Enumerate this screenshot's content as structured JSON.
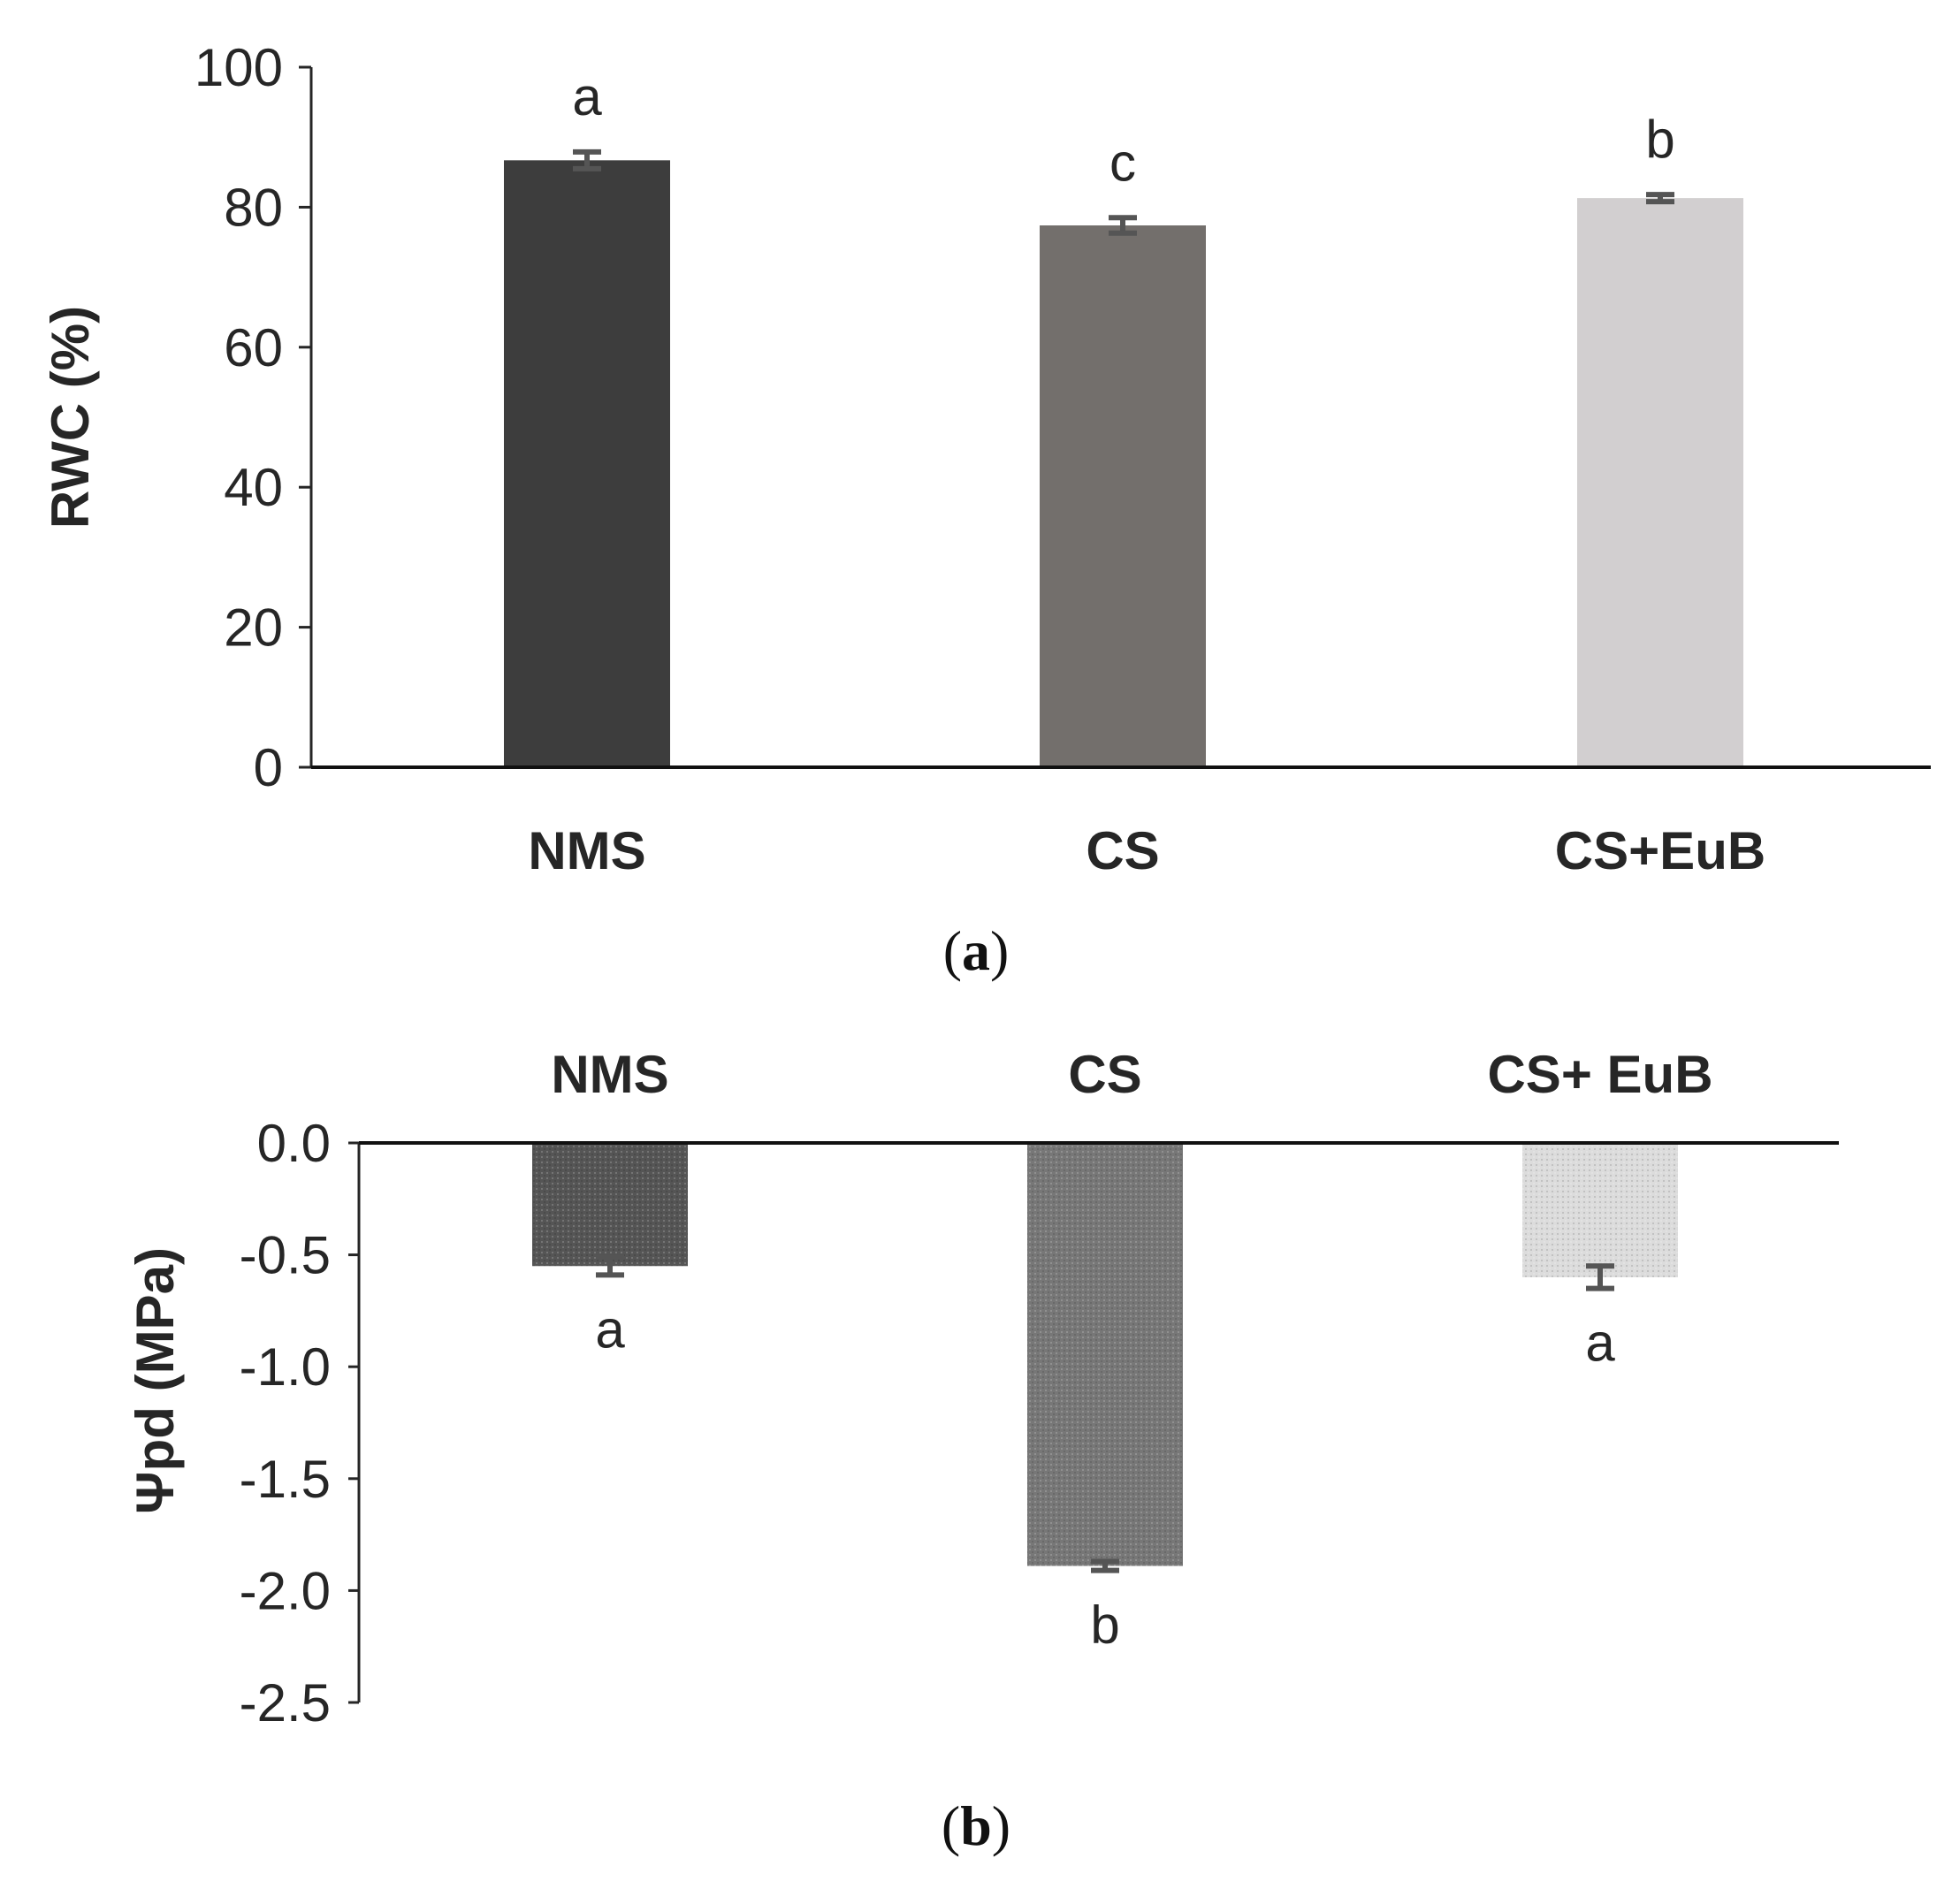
{
  "chart_data": [
    {
      "type": "bar",
      "panel_label": "a",
      "title": "",
      "xlabel": "",
      "ylabel": "RWC (%)",
      "ylim": [
        0,
        100
      ],
      "yticks": [
        0,
        20,
        40,
        60,
        80,
        100
      ],
      "ytick_labels": [
        "0",
        "20",
        "40",
        "60",
        "80",
        "100"
      ],
      "categories": [
        "NMS",
        "CS",
        "CS+EuB"
      ],
      "values": [
        86.7,
        77.4,
        81.3
      ],
      "errors": [
        1.2,
        1.1,
        0.5
      ],
      "significance": [
        "a",
        "c",
        "b"
      ],
      "colors": [
        "#3d3d3d",
        "#736f6c",
        "#d2cfd0"
      ],
      "grid": false,
      "legend": "none"
    },
    {
      "type": "bar",
      "panel_label": "b",
      "title": "",
      "xlabel": "",
      "ylabel": "Ψpd (MPa)",
      "ylim": [
        -2.5,
        0
      ],
      "yticks": [
        0,
        -0.5,
        -1.0,
        -1.5,
        -2.0,
        -2.5
      ],
      "ytick_labels": [
        "0.0",
        "-0.5",
        "-1.0",
        "-1.5",
        "-2.0",
        "-2.5"
      ],
      "categories": [
        "NMS",
        "CS",
        "CS+ EuB"
      ],
      "values": [
        -0.55,
        -1.89,
        -0.6
      ],
      "errors": [
        0.04,
        0.02,
        0.05
      ],
      "significance": [
        "a",
        "b",
        "a"
      ],
      "colors": [
        "#555555",
        "#777777",
        "#dcdcdc"
      ],
      "grid": false,
      "legend": "none"
    }
  ]
}
